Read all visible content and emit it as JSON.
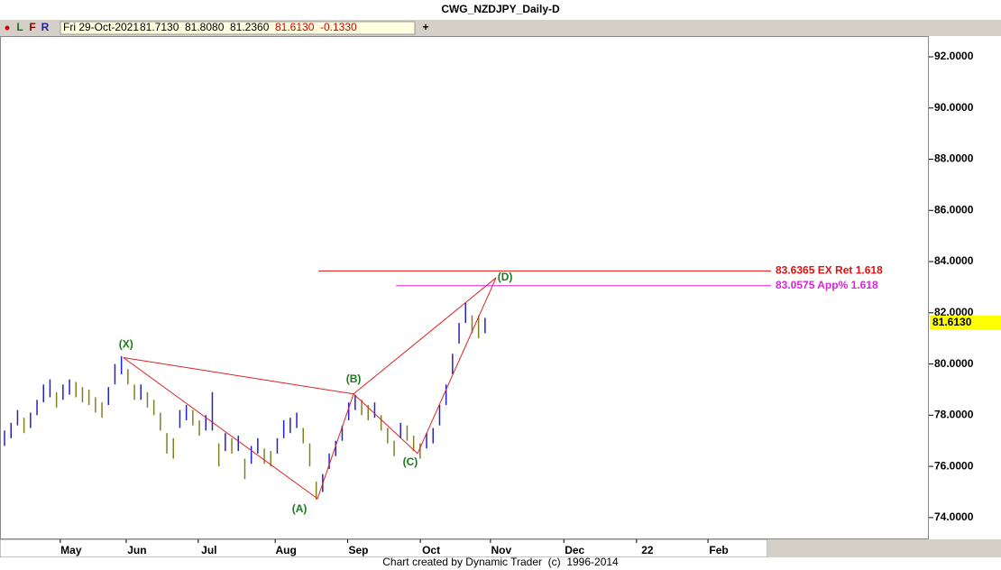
{
  "header": {
    "title": "CWG_NZDJPY_Daily-D",
    "buttons": [
      "L",
      "F",
      "R"
    ],
    "add_button": "+",
    "info": {
      "date": "Fri 29-Oct-2021",
      "open": "81.7130",
      "high": "81.8080",
      "low": "81.2360",
      "close": "81.6130",
      "change": "-0.1330"
    }
  },
  "footer": "Chart created by Dynamic Trader  (c)  1996-2014",
  "chart_data": {
    "type": "ohlc",
    "title": "CWG_NZDJPY_Daily-D",
    "x": [
      0,
      2,
      4,
      6,
      8,
      10,
      12,
      14,
      16,
      18,
      20,
      22,
      24,
      26,
      28,
      30,
      32,
      34,
      36,
      38,
      40,
      42,
      44,
      46,
      48,
      50,
      52,
      54,
      56,
      58,
      60,
      62,
      64,
      66,
      68,
      70,
      72,
      74,
      76,
      78,
      80,
      82,
      84,
      86,
      88,
      90,
      92,
      94,
      96,
      98,
      100,
      102,
      104,
      106,
      108,
      110,
      112,
      114,
      116,
      118,
      120,
      122,
      124,
      126,
      128,
      130,
      132,
      134,
      136,
      138,
      140,
      142,
      144,
      146,
      148
    ],
    "high": [
      77.4,
      77.7,
      78.2,
      77.9,
      78.1,
      78.6,
      79.2,
      79.4,
      78.9,
      79.2,
      79.4,
      79.3,
      79.1,
      79.0,
      78.7,
      78.5,
      79.1,
      80.0,
      80.3,
      79.8,
      79.2,
      79.2,
      78.9,
      78.6,
      78.1,
      77.3,
      77.1,
      78.2,
      78.4,
      78.2,
      77.8,
      78.0,
      78.9,
      76.9,
      77.3,
      77.1,
      77.2,
      76.3,
      76.8,
      77.1,
      76.7,
      76.6,
      77.1,
      77.8,
      77.9,
      78.1,
      77.5,
      76.9,
      75.4,
      75.7,
      76.5,
      77.0,
      77.6,
      78.5,
      78.8,
      78.6,
      78.4,
      78.5,
      78.0,
      77.5,
      77.0,
      77.7,
      77.6,
      77.2,
      76.9,
      77.3,
      77.5,
      78.4,
      79.2,
      80.4,
      81.6,
      82.4,
      81.9,
      81.9,
      81.8
    ],
    "low": [
      76.8,
      77.1,
      77.6,
      77.3,
      77.5,
      78.0,
      78.5,
      78.7,
      78.3,
      78.6,
      78.8,
      78.7,
      78.5,
      78.4,
      78.1,
      77.9,
      78.4,
      79.2,
      79.6,
      79.2,
      78.6,
      78.6,
      78.3,
      78.0,
      77.4,
      76.5,
      76.3,
      77.5,
      77.8,
      77.6,
      77.2,
      77.4,
      77.4,
      76.0,
      76.6,
      76.5,
      76.6,
      75.5,
      76.1,
      76.5,
      76.1,
      76.0,
      76.5,
      77.1,
      77.3,
      77.5,
      76.9,
      76.0,
      74.7,
      75.0,
      75.9,
      76.4,
      77.0,
      77.8,
      78.2,
      78.0,
      77.8,
      77.9,
      77.4,
      76.9,
      76.4,
      77.1,
      77.0,
      76.6,
      76.3,
      76.7,
      76.9,
      77.6,
      78.4,
      79.6,
      80.8,
      81.6,
      81.2,
      81.0,
      81.2
    ],
    "up_color": "#2222cc",
    "down_color": "#808020",
    "xlim": [
      -1.4,
      284.7
    ],
    "ylim": [
      73.15,
      92.81
    ],
    "xticks": [
      {
        "value": 20.5,
        "label": "May"
      },
      {
        "value": 40.8,
        "label": "Jun"
      },
      {
        "value": 63,
        "label": "Jul"
      },
      {
        "value": 86.7,
        "label": "Aug"
      },
      {
        "value": 109,
        "label": "Sep"
      },
      {
        "value": 131.4,
        "label": "Oct"
      },
      {
        "value": 153,
        "label": "Nov"
      },
      {
        "value": 175.6,
        "label": "Dec"
      },
      {
        "value": 198,
        "label": "22"
      },
      {
        "value": 220,
        "label": "Feb"
      }
    ],
    "yticks": [
      {
        "value": 74,
        "label": "74.0000"
      },
      {
        "value": 76,
        "label": "76.0000"
      },
      {
        "value": 78,
        "label": "78.0000"
      },
      {
        "value": 80,
        "label": "80.0000"
      },
      {
        "value": 82,
        "label": "82.0000"
      },
      {
        "value": 84,
        "label": "84.0000"
      },
      {
        "value": 86,
        "label": "86.0000"
      },
      {
        "value": 88,
        "label": "88.0000"
      },
      {
        "value": 90,
        "label": "90.0000"
      },
      {
        "value": 92,
        "label": "92.0000"
      }
    ],
    "last_price": {
      "value": 81.613,
      "label": "81.6130"
    },
    "pattern": {
      "color": "#dd2222",
      "label_color": "#1a7a1a",
      "points": [
        {
          "label": "(X)",
          "x": 36.6,
          "y": 80.25
        },
        {
          "label": "(A)",
          "x": 96.4,
          "y": 74.74
        },
        {
          "label": "(B)",
          "x": 107.5,
          "y": 78.83
        },
        {
          "label": "(C)",
          "x": 127.2,
          "y": 76.5
        },
        {
          "label": "(D)",
          "x": 151.4,
          "y": 83.37
        }
      ]
    },
    "levels": [
      {
        "value": 83.6365,
        "label": "83.6365 EX Ret 1.618",
        "x": 96.7,
        "color": "#dd1111"
      },
      {
        "value": 83.0575,
        "label": "83.0575 App% 1.618",
        "x": 120.6,
        "color": "#dd22dd"
      }
    ]
  }
}
